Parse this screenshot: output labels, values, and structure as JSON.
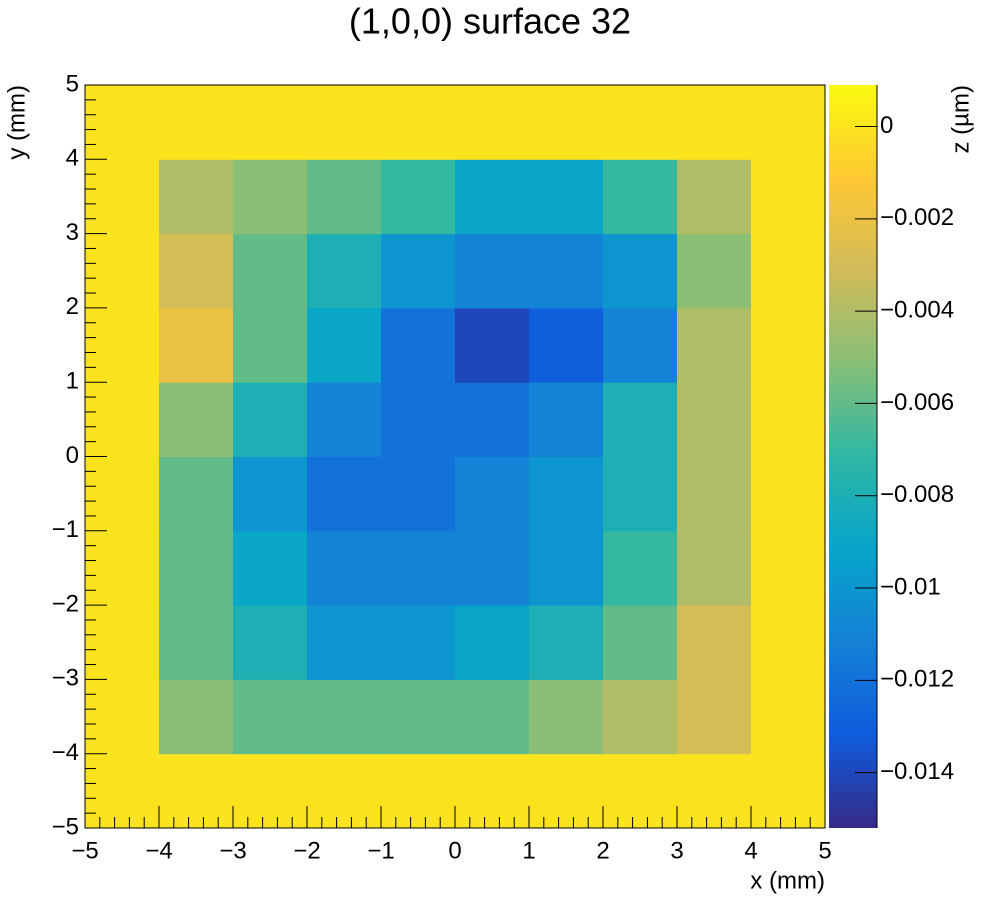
{
  "chart_data": {
    "type": "heatmap",
    "title": "(1,0,0) surface 32",
    "x_label": "x (mm)",
    "y_label": "y (mm)",
    "z_label": "z (µm)",
    "xbins": [
      -5,
      -4,
      -3,
      -2,
      -1,
      0,
      1,
      2,
      3,
      4,
      5
    ],
    "ybins": [
      -5,
      -4,
      -3,
      -2,
      -1,
      0,
      1,
      2,
      3,
      4,
      5
    ],
    "z": [
      [
        0,
        0,
        0,
        0,
        0,
        0,
        0,
        0,
        0,
        0
      ],
      [
        0,
        -0.005,
        -0.006,
        -0.006,
        -0.006,
        -0.006,
        -0.005,
        -0.004,
        -0.003,
        0
      ],
      [
        0,
        -0.006,
        -0.008,
        -0.01,
        -0.01,
        -0.009,
        -0.008,
        -0.006,
        -0.003,
        0
      ],
      [
        0,
        -0.006,
        -0.009,
        -0.011,
        -0.011,
        -0.011,
        -0.01,
        -0.007,
        -0.004,
        0
      ],
      [
        0,
        -0.006,
        -0.01,
        -0.012,
        -0.012,
        -0.011,
        -0.01,
        -0.008,
        -0.004,
        0
      ],
      [
        0,
        -0.005,
        -0.008,
        -0.011,
        -0.012,
        -0.012,
        -0.011,
        -0.008,
        -0.004,
        0
      ],
      [
        0,
        -0.002,
        -0.006,
        -0.009,
        -0.012,
        -0.014,
        -0.013,
        -0.011,
        -0.004,
        0
      ],
      [
        0,
        -0.003,
        -0.006,
        -0.008,
        -0.01,
        -0.011,
        -0.011,
        -0.01,
        -0.005,
        0
      ],
      [
        0,
        -0.004,
        -0.005,
        -0.006,
        -0.007,
        -0.009,
        -0.009,
        -0.007,
        -0.004,
        0
      ],
      [
        0,
        0,
        0,
        0,
        0,
        0,
        0,
        0,
        0,
        0
      ]
    ],
    "xlim": [
      -5,
      5
    ],
    "ylim": [
      -5,
      5
    ],
    "zlim": [
      -0.0152,
      0.0009
    ],
    "xticks": [
      {
        "value": -5,
        "label": "−5"
      },
      {
        "value": -4,
        "label": "−4"
      },
      {
        "value": -3,
        "label": "−3"
      },
      {
        "value": -2,
        "label": "−2"
      },
      {
        "value": -1,
        "label": "−1"
      },
      0,
      1,
      2,
      3,
      4,
      5
    ],
    "yticks": [
      {
        "value": -5,
        "label": "−5"
      },
      {
        "value": -4,
        "label": "−4"
      },
      {
        "value": -3,
        "label": "−3"
      },
      {
        "value": -2,
        "label": "−2"
      },
      {
        "value": -1,
        "label": "−1"
      },
      0,
      1,
      2,
      3,
      4,
      5
    ],
    "zticks": [
      0,
      {
        "value": -0.002,
        "label": "−0.002"
      },
      {
        "value": -0.004,
        "label": "−0.004"
      },
      {
        "value": -0.006,
        "label": "−0.006"
      },
      {
        "value": -0.008,
        "label": "−0.008"
      },
      {
        "value": -0.01,
        "label": "−0.01"
      },
      {
        "value": -0.012,
        "label": "−0.012"
      },
      {
        "value": -0.014,
        "label": "−0.014"
      }
    ],
    "palette": [
      "#352a87",
      "#0f5cdd",
      "#1481d6",
      "#06a4ca",
      "#2eb7a4",
      "#87bf77",
      "#d1bb59",
      "#fec832",
      "#f9fb0e"
    ]
  }
}
